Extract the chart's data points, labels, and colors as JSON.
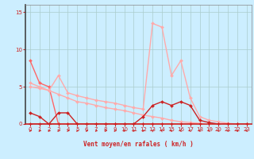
{
  "bg_color": "#cceeff",
  "grid_color": "#aacccc",
  "xlabel": "Vent moyen/en rafales ( km/h )",
  "xlim": [
    -0.5,
    23.5
  ],
  "ylim": [
    0,
    16
  ],
  "yticks": [
    0,
    5,
    10,
    15
  ],
  "xticks": [
    0,
    1,
    2,
    3,
    4,
    5,
    6,
    7,
    8,
    9,
    10,
    11,
    12,
    13,
    14,
    15,
    16,
    17,
    18,
    19,
    20,
    21,
    22,
    23
  ],
  "lines": [
    {
      "x": [
        0,
        1,
        2,
        3,
        4,
        5,
        6,
        7,
        8,
        9,
        10,
        11,
        12,
        13,
        14,
        15,
        16,
        17,
        18,
        19,
        20,
        21,
        22,
        23
      ],
      "y": [
        8.5,
        5.5,
        5.0,
        0.0,
        0.0,
        0.0,
        0.0,
        0.0,
        0.0,
        0.0,
        0.0,
        0.0,
        0.0,
        0.0,
        0.0,
        0.0,
        0.0,
        0.0,
        0.0,
        0.0,
        0.0,
        0.0,
        0.0,
        0.0
      ],
      "color": "#ff6666",
      "lw": 1.0,
      "marker": "D",
      "ms": 2.0
    },
    {
      "x": [
        0,
        1,
        2,
        3,
        4,
        5,
        6,
        7,
        8,
        9,
        10,
        11,
        12,
        13,
        14,
        15,
        16,
        17,
        18,
        19,
        20,
        21,
        22,
        23
      ],
      "y": [
        5.5,
        5.0,
        4.5,
        4.0,
        3.5,
        3.0,
        2.8,
        2.5,
        2.2,
        2.0,
        1.8,
        1.5,
        1.2,
        1.0,
        0.8,
        0.5,
        0.3,
        0.2,
        0.1,
        0.0,
        0.0,
        0.0,
        0.0,
        0.0
      ],
      "color": "#ffaaaa",
      "lw": 1.0,
      "marker": "D",
      "ms": 2.0
    },
    {
      "x": [
        0,
        1,
        2,
        3,
        4,
        5,
        6,
        7,
        8,
        9,
        10,
        11,
        12,
        13,
        14,
        15,
        16,
        17,
        18,
        19,
        20,
        21,
        22,
        23
      ],
      "y": [
        5.0,
        4.8,
        4.5,
        6.5,
        4.2,
        3.8,
        3.5,
        3.2,
        3.0,
        2.8,
        2.5,
        2.2,
        2.0,
        13.5,
        13.0,
        6.5,
        8.5,
        3.5,
        1.0,
        0.5,
        0.3,
        0.1,
        0.0,
        0.0
      ],
      "color": "#ffaaaa",
      "lw": 1.0,
      "marker": "D",
      "ms": 2.0
    },
    {
      "x": [
        0,
        1,
        2,
        3,
        4,
        5,
        6,
        7,
        8,
        9,
        10,
        11,
        12,
        13,
        14,
        15,
        16,
        17,
        18,
        19,
        20,
        21,
        22,
        23
      ],
      "y": [
        1.5,
        1.0,
        0.0,
        1.5,
        1.5,
        0.0,
        0.0,
        0.0,
        0.0,
        0.0,
        0.0,
        0.0,
        0.0,
        0.0,
        0.0,
        0.0,
        0.0,
        0.0,
        0.0,
        0.0,
        0.0,
        0.0,
        0.0,
        0.0
      ],
      "color": "#cc2222",
      "lw": 1.0,
      "marker": "D",
      "ms": 2.0
    },
    {
      "x": [
        0,
        1,
        2,
        3,
        4,
        5,
        6,
        7,
        8,
        9,
        10,
        11,
        12,
        13,
        14,
        15,
        16,
        17,
        18,
        19,
        20,
        21,
        22,
        23
      ],
      "y": [
        0.0,
        0.0,
        0.0,
        0.0,
        0.0,
        0.0,
        0.0,
        0.0,
        0.0,
        0.0,
        0.0,
        0.0,
        1.0,
        2.5,
        3.0,
        2.5,
        3.0,
        2.5,
        0.5,
        0.2,
        0.0,
        0.0,
        0.0,
        0.0
      ],
      "color": "#cc2222",
      "lw": 1.0,
      "marker": "D",
      "ms": 2.0
    }
  ],
  "wind_arrows": {
    "x": [
      0,
      1,
      2,
      3,
      4,
      5,
      6,
      7,
      8,
      9,
      10,
      11,
      12,
      13,
      14,
      15,
      16,
      17,
      18,
      19,
      20,
      21,
      22,
      23
    ],
    "angles": [
      90,
      90,
      90,
      90,
      90,
      90,
      90,
      90,
      90,
      90,
      90,
      90,
      90,
      45,
      315,
      270,
      270,
      270,
      270,
      270,
      270,
      270,
      270,
      270
    ]
  },
  "font_color": "#cc2222",
  "arrow_color": "#cc2222"
}
